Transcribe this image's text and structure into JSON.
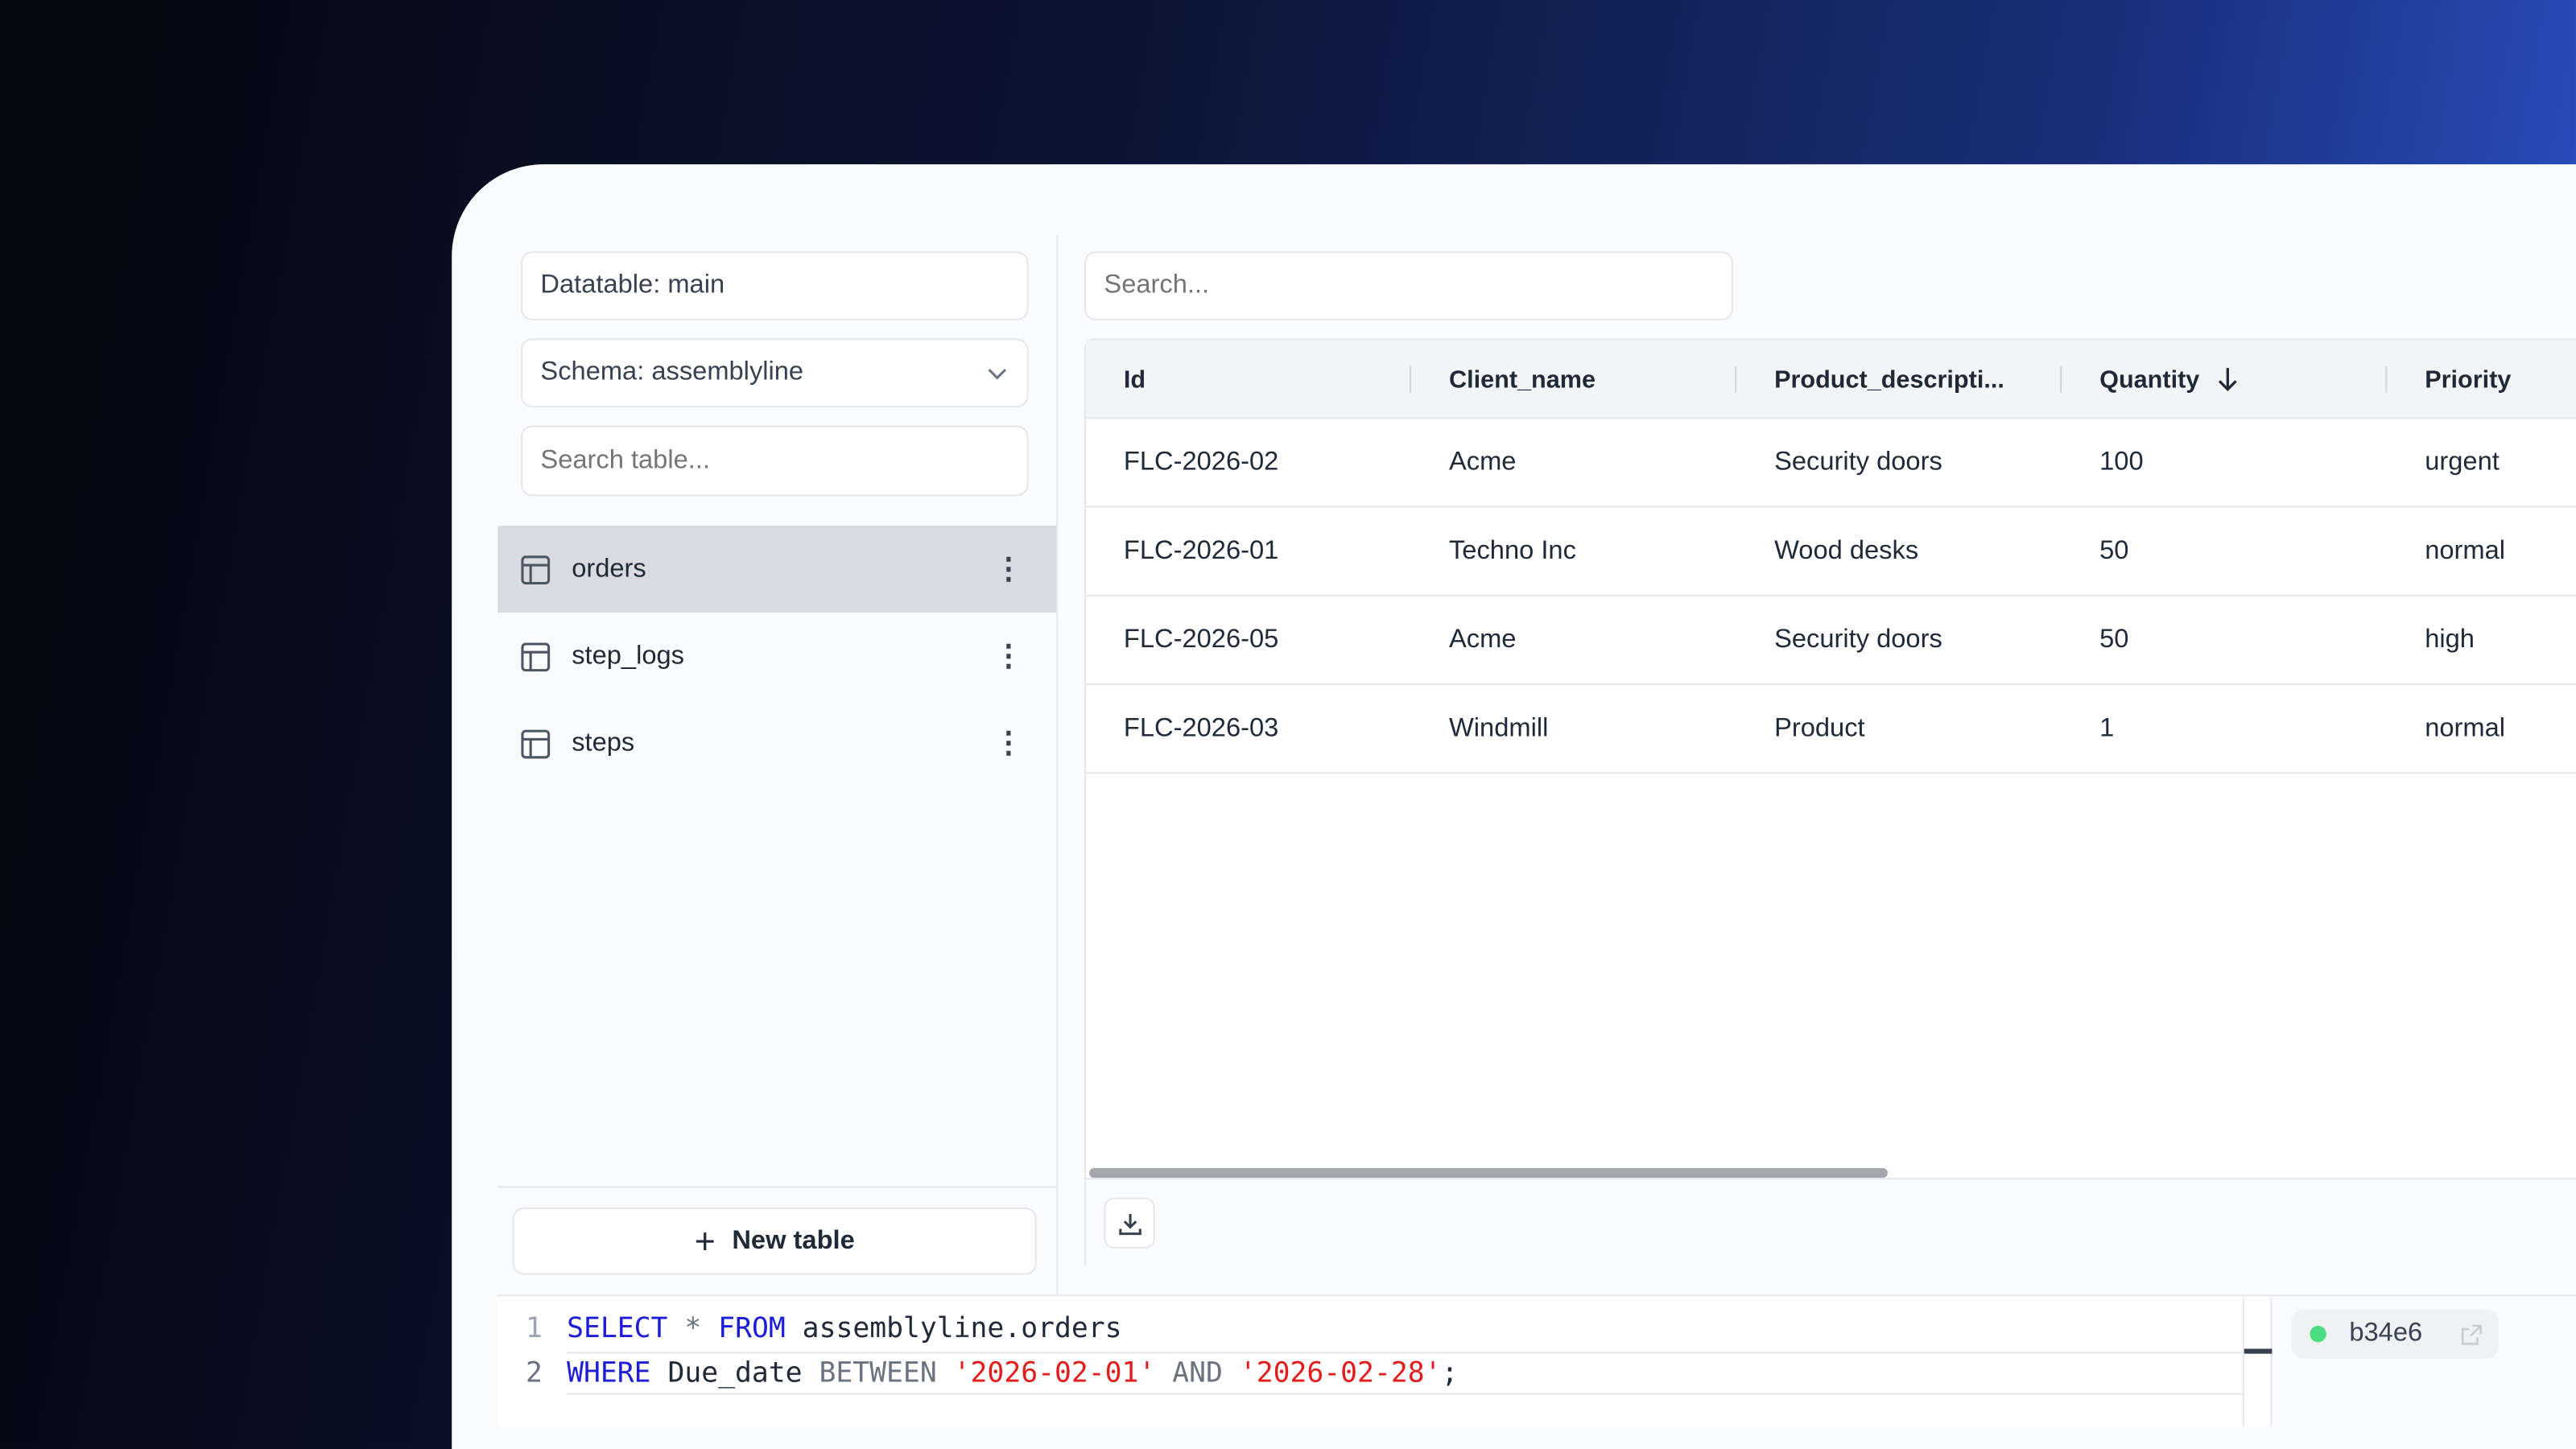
{
  "sidebar": {
    "datatable_label": "Datatable: main",
    "schema_label": "Schema: assemblyline",
    "search_placeholder": "Search table...",
    "tables": [
      {
        "name": "orders",
        "selected": true
      },
      {
        "name": "step_logs",
        "selected": false
      },
      {
        "name": "steps",
        "selected": false
      }
    ],
    "new_table_label": "New table"
  },
  "main": {
    "search_placeholder": "Search...",
    "columns": [
      "Id",
      "Client_name",
      "Product_descripti...",
      "Quantity",
      "Priority"
    ],
    "sort": {
      "column": "Quantity",
      "direction": "descending"
    },
    "rows": [
      [
        "FLC-2026-02",
        "Acme",
        "Security doors",
        "100",
        "urgent"
      ],
      [
        "FLC-2026-01",
        "Techno Inc",
        "Wood desks",
        "50",
        "normal"
      ],
      [
        "FLC-2026-05",
        "Acme",
        "Security doors",
        "50",
        "high"
      ],
      [
        "FLC-2026-03",
        "Windmill",
        "Product",
        "1",
        "normal"
      ]
    ]
  },
  "editor": {
    "line_numbers": [
      "1",
      "2"
    ],
    "line1": {
      "kw1": "SELECT",
      "op": "*",
      "kw2": "FROM",
      "rest": "assemblyline.orders"
    },
    "line2": {
      "kw1": "WHERE",
      "ident": "Due_date",
      "op1": "BETWEEN",
      "str1": "'2026-02-01'",
      "op2": "AND",
      "str2": "'2026-02-28'",
      "end": ";"
    }
  },
  "status": {
    "commit": "b34e6",
    "status_color": "#4ade80"
  }
}
